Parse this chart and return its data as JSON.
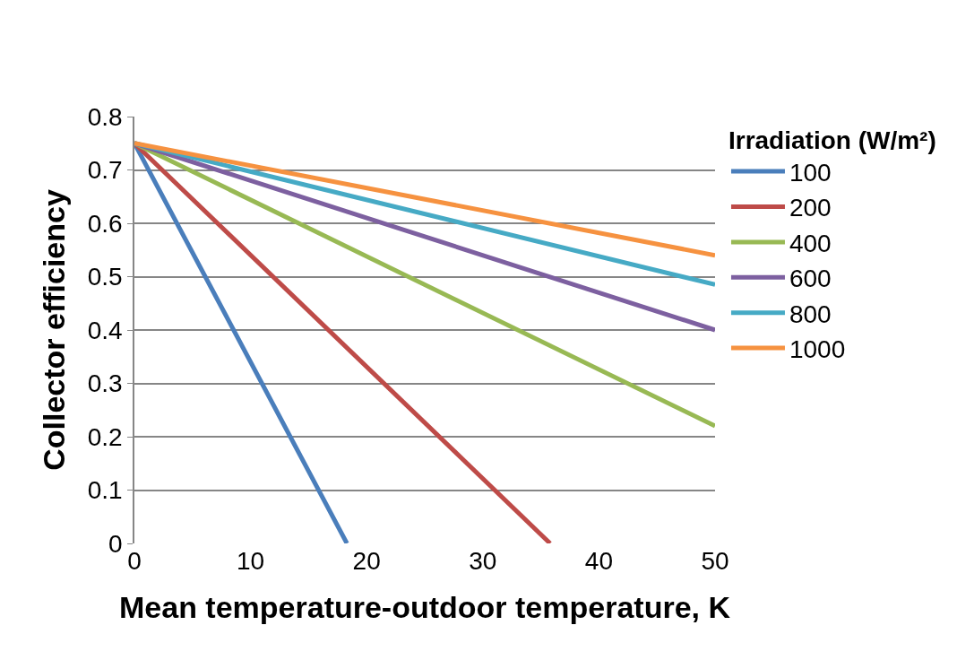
{
  "chart_data": {
    "type": "line",
    "xlabel": "Mean temperature-outdoor temperature, K",
    "ylabel": "Collector efficiency",
    "legend_title": "Irradiation (W/m²)",
    "series": [
      {
        "name": "100",
        "color": "#4a7ebb",
        "x": [
          0,
          18.3
        ],
        "values": [
          0.75,
          0
        ]
      },
      {
        "name": "200",
        "color": "#be4b48",
        "x": [
          0,
          35.8
        ],
        "values": [
          0.75,
          0
        ]
      },
      {
        "name": "400",
        "color": "#98b954",
        "x": [
          0,
          50
        ],
        "values": [
          0.75,
          0.22
        ]
      },
      {
        "name": "600",
        "color": "#7d60a0",
        "x": [
          0,
          50
        ],
        "values": [
          0.75,
          0.4
        ]
      },
      {
        "name": "800",
        "color": "#46aac5",
        "x": [
          0,
          50
        ],
        "values": [
          0.75,
          0.485
        ]
      },
      {
        "name": "1000",
        "color": "#f69240",
        "x": [
          0,
          50
        ],
        "values": [
          0.75,
          0.54
        ]
      }
    ],
    "xlim": [
      0,
      50
    ],
    "xticks": [
      0,
      10,
      20,
      30,
      40,
      50
    ],
    "ylim": [
      0,
      0.8
    ],
    "yticks": [
      0,
      0.1,
      0.2,
      0.3,
      0.4,
      0.5,
      0.6,
      0.7,
      0.8
    ],
    "grid": "y",
    "legend": "right",
    "marker": "none",
    "line_style": "solid"
  }
}
